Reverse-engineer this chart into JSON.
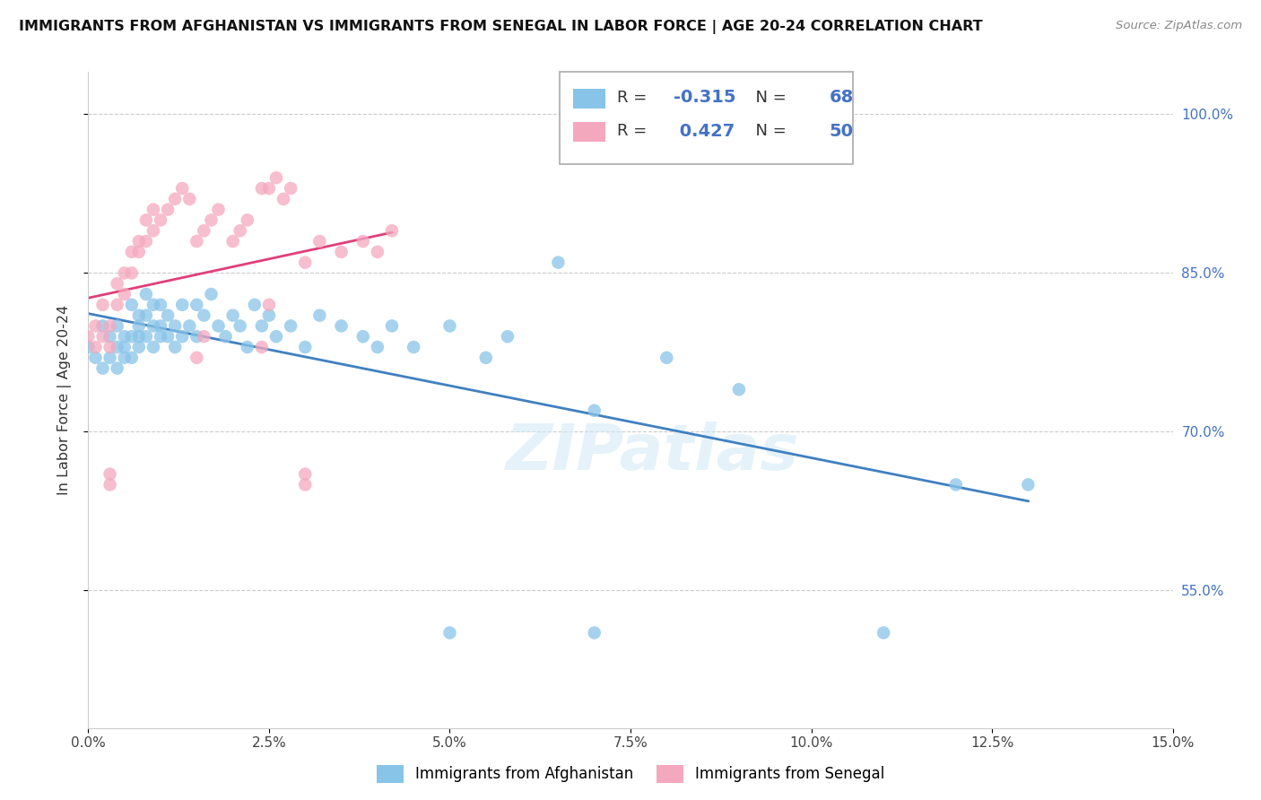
{
  "title": "IMMIGRANTS FROM AFGHANISTAN VS IMMIGRANTS FROM SENEGAL IN LABOR FORCE | AGE 20-24 CORRELATION CHART",
  "source": "Source: ZipAtlas.com",
  "ylabel": "In Labor Force | Age 20-24",
  "legend_blue": "Immigrants from Afghanistan",
  "legend_pink": "Immigrants from Senegal",
  "r_blue": -0.315,
  "n_blue": 68,
  "r_pink": 0.427,
  "n_pink": 50,
  "watermark": "ZIPatlas",
  "blue_color": "#88c4e8",
  "pink_color": "#f4a8be",
  "trendline_blue": "#4080c0",
  "trendline_pink": "#e0407a",
  "xlim": [
    0.0,
    0.15
  ],
  "ylim": [
    0.42,
    1.04
  ],
  "ytick_vals": [
    0.55,
    0.7,
    0.85,
    1.0
  ],
  "ytick_labels": [
    "55.0%",
    "70.0%",
    "85.0%",
    "100.0%"
  ],
  "xtick_vals": [
    0.0,
    0.025,
    0.05,
    0.075,
    0.1,
    0.125,
    0.15
  ],
  "blue_points_x": [
    0.0,
    0.001,
    0.002,
    0.002,
    0.003,
    0.003,
    0.004,
    0.004,
    0.004,
    0.005,
    0.005,
    0.005,
    0.006,
    0.006,
    0.006,
    0.007,
    0.007,
    0.007,
    0.007,
    0.008,
    0.008,
    0.008,
    0.009,
    0.009,
    0.009,
    0.01,
    0.01,
    0.01,
    0.011,
    0.011,
    0.012,
    0.012,
    0.013,
    0.013,
    0.014,
    0.015,
    0.015,
    0.016,
    0.017,
    0.018,
    0.019,
    0.02,
    0.021,
    0.022,
    0.023,
    0.024,
    0.025,
    0.026,
    0.028,
    0.03,
    0.032,
    0.035,
    0.038,
    0.04,
    0.042,
    0.045,
    0.05,
    0.055,
    0.058,
    0.065,
    0.07,
    0.08,
    0.09,
    0.11,
    0.13,
    0.05,
    0.07,
    0.12
  ],
  "blue_points_y": [
    0.78,
    0.77,
    0.8,
    0.76,
    0.79,
    0.77,
    0.78,
    0.8,
    0.76,
    0.79,
    0.77,
    0.78,
    0.82,
    0.79,
    0.77,
    0.81,
    0.79,
    0.8,
    0.78,
    0.83,
    0.81,
    0.79,
    0.8,
    0.82,
    0.78,
    0.79,
    0.8,
    0.82,
    0.81,
    0.79,
    0.8,
    0.78,
    0.82,
    0.79,
    0.8,
    0.79,
    0.82,
    0.81,
    0.83,
    0.8,
    0.79,
    0.81,
    0.8,
    0.78,
    0.82,
    0.8,
    0.81,
    0.79,
    0.8,
    0.78,
    0.81,
    0.8,
    0.79,
    0.78,
    0.8,
    0.78,
    0.8,
    0.77,
    0.79,
    0.86,
    0.72,
    0.77,
    0.74,
    0.51,
    0.65,
    0.51,
    0.51,
    0.65
  ],
  "pink_points_x": [
    0.0,
    0.001,
    0.001,
    0.002,
    0.002,
    0.003,
    0.003,
    0.004,
    0.004,
    0.005,
    0.005,
    0.006,
    0.006,
    0.007,
    0.007,
    0.008,
    0.008,
    0.009,
    0.009,
    0.01,
    0.011,
    0.012,
    0.013,
    0.014,
    0.015,
    0.016,
    0.017,
    0.018,
    0.02,
    0.021,
    0.022,
    0.024,
    0.025,
    0.026,
    0.027,
    0.028,
    0.03,
    0.032,
    0.035,
    0.038,
    0.04,
    0.042,
    0.024,
    0.025,
    0.015,
    0.016,
    0.003,
    0.003,
    0.03,
    0.03
  ],
  "pink_points_y": [
    0.79,
    0.78,
    0.8,
    0.79,
    0.82,
    0.8,
    0.78,
    0.82,
    0.84,
    0.83,
    0.85,
    0.87,
    0.85,
    0.87,
    0.88,
    0.88,
    0.9,
    0.89,
    0.91,
    0.9,
    0.91,
    0.92,
    0.93,
    0.92,
    0.88,
    0.89,
    0.9,
    0.91,
    0.88,
    0.89,
    0.9,
    0.93,
    0.93,
    0.94,
    0.92,
    0.93,
    0.86,
    0.88,
    0.87,
    0.88,
    0.87,
    0.89,
    0.78,
    0.82,
    0.77,
    0.79,
    0.65,
    0.66,
    0.65,
    0.66
  ]
}
